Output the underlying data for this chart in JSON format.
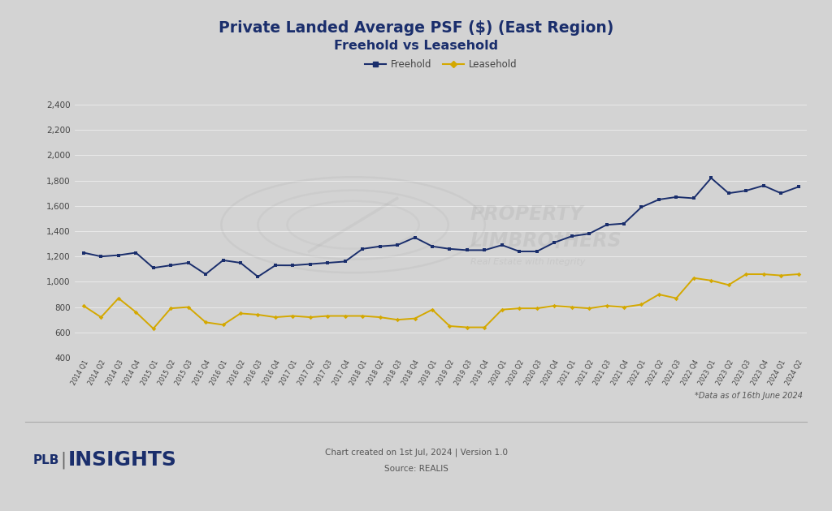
{
  "title_line1": "Private Landed Average PSF ($) (East Region)",
  "title_line2": "Freehold vs Leasehold",
  "background_color": "#d3d3d3",
  "plot_bg_color": "#d3d3d3",
  "freehold_color": "#1a2e6c",
  "leasehold_color": "#d4a800",
  "ylabel_ticks": [
    400,
    600,
    800,
    1000,
    1200,
    1400,
    1600,
    1800,
    2000,
    2200,
    2400
  ],
  "quarters": [
    "2014 Q1",
    "2014 Q2",
    "2014 Q3",
    "2014 Q4",
    "2015 Q1",
    "2015 Q2",
    "2015 Q3",
    "2015 Q4",
    "2016 Q1",
    "2016 Q2",
    "2016 Q3",
    "2016 Q4",
    "2017 Q1",
    "2017 Q2",
    "2017 Q3",
    "2017 Q4",
    "2018 Q1",
    "2018 Q2",
    "2018 Q3",
    "2018 Q4",
    "2019 Q1",
    "2019 Q2",
    "2019 Q3",
    "2019 Q4",
    "2020 Q1",
    "2020 Q2",
    "2020 Q3",
    "2020 Q4",
    "2021 Q1",
    "2021 Q2",
    "2021 Q3",
    "2021 Q4",
    "2022 Q1",
    "2022 Q2",
    "2022 Q3",
    "2022 Q4",
    "2023 Q1",
    "2023 Q2",
    "2023 Q3",
    "2023 Q4",
    "2024 Q1",
    "2024 Q2"
  ],
  "freehold": [
    1230,
    1200,
    1210,
    1230,
    1110,
    1130,
    1150,
    1060,
    1170,
    1150,
    1040,
    1130,
    1130,
    1140,
    1150,
    1160,
    1260,
    1280,
    1290,
    1350,
    1280,
    1260,
    1250,
    1250,
    1290,
    1240,
    1240,
    1310,
    1360,
    1380,
    1450,
    1460,
    1590,
    1650,
    1670,
    1660,
    1820,
    1700,
    1720,
    1760,
    1700,
    1750
  ],
  "leasehold": [
    810,
    720,
    870,
    760,
    630,
    790,
    800,
    680,
    660,
    750,
    740,
    720,
    730,
    720,
    730,
    730,
    730,
    720,
    700,
    710,
    780,
    650,
    640,
    640,
    780,
    790,
    790,
    810,
    800,
    790,
    810,
    800,
    820,
    900,
    870,
    1030,
    1010,
    975,
    1060,
    1060,
    1050,
    1060
  ],
  "note": "*Data as of 16th June 2024",
  "footer_center_line1": "Chart created on 1st Jul, 2024 | Version 1.0",
  "footer_center_line2": "Source: REALIS"
}
